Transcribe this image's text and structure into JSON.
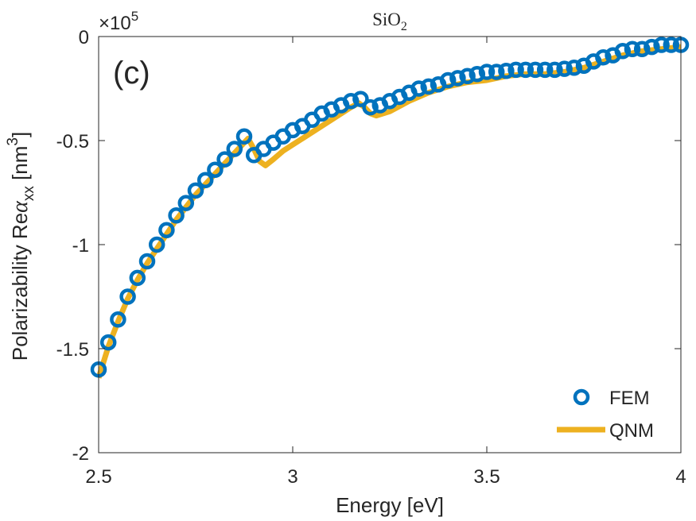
{
  "chart_data": {
    "type": "line",
    "title": "SiO",
    "title_subscript": "2",
    "panel_label": "(c)",
    "xlabel": "Energy [eV]",
    "ylabel_parts": [
      "Polarizability Re",
      "α",
      "xx",
      " [nm",
      "3",
      "]"
    ],
    "exponent_prefix": "×10",
    "exponent_power": "5",
    "xlim": [
      2.5,
      4.0
    ],
    "ylim": [
      -2.0,
      0.0
    ],
    "y_scale": 100000,
    "xticks": [
      2.5,
      3.0,
      3.5,
      4.0
    ],
    "xtick_labels": [
      "2.5",
      "3",
      "3.5",
      "4"
    ],
    "yticks": [
      0,
      -0.5,
      -1,
      -1.5,
      -2
    ],
    "ytick_labels": [
      "0",
      "-0.5",
      "-1",
      "-1.5",
      "-2"
    ],
    "grid": false,
    "legend_location": "bottom-right",
    "series": [
      {
        "name": "FEM",
        "style": "markers",
        "color": "#0072BD",
        "x": [
          2.5,
          2.525,
          2.55,
          2.575,
          2.6,
          2.625,
          2.65,
          2.675,
          2.7,
          2.725,
          2.75,
          2.775,
          2.8,
          2.825,
          2.85,
          2.875,
          2.9,
          2.925,
          2.95,
          2.975,
          3.0,
          3.025,
          3.05,
          3.075,
          3.1,
          3.125,
          3.15,
          3.175,
          3.2,
          3.225,
          3.25,
          3.275,
          3.3,
          3.325,
          3.35,
          3.375,
          3.4,
          3.425,
          3.45,
          3.475,
          3.5,
          3.525,
          3.55,
          3.575,
          3.6,
          3.625,
          3.65,
          3.675,
          3.7,
          3.725,
          3.75,
          3.775,
          3.8,
          3.825,
          3.85,
          3.875,
          3.9,
          3.925,
          3.95,
          3.975,
          4.0
        ],
        "y": [
          -1.6,
          -1.47,
          -1.36,
          -1.25,
          -1.16,
          -1.08,
          -1.0,
          -0.93,
          -0.86,
          -0.8,
          -0.74,
          -0.69,
          -0.64,
          -0.59,
          -0.54,
          -0.48,
          -0.57,
          -0.54,
          -0.51,
          -0.48,
          -0.45,
          -0.43,
          -0.4,
          -0.37,
          -0.35,
          -0.33,
          -0.31,
          -0.3,
          -0.34,
          -0.33,
          -0.31,
          -0.29,
          -0.27,
          -0.25,
          -0.24,
          -0.23,
          -0.21,
          -0.2,
          -0.19,
          -0.18,
          -0.17,
          -0.17,
          -0.165,
          -0.16,
          -0.16,
          -0.16,
          -0.16,
          -0.16,
          -0.155,
          -0.15,
          -0.14,
          -0.12,
          -0.1,
          -0.09,
          -0.07,
          -0.06,
          -0.06,
          -0.05,
          -0.04,
          -0.04,
          -0.04
        ]
      },
      {
        "name": "QNM",
        "style": "line",
        "color": "#EDB120",
        "x": [
          2.5,
          2.525,
          2.55,
          2.575,
          2.6,
          2.625,
          2.65,
          2.675,
          2.7,
          2.725,
          2.75,
          2.775,
          2.8,
          2.825,
          2.85,
          2.87,
          2.885,
          2.9,
          2.915,
          2.93,
          2.95,
          2.975,
          3.0,
          3.025,
          3.05,
          3.075,
          3.1,
          3.125,
          3.15,
          3.17,
          3.185,
          3.2,
          3.215,
          3.25,
          3.3,
          3.35,
          3.4,
          3.45,
          3.5,
          3.55,
          3.6,
          3.65,
          3.7,
          3.75,
          3.8,
          3.85,
          3.9,
          3.95,
          4.0
        ],
        "y": [
          -1.64,
          -1.49,
          -1.37,
          -1.26,
          -1.17,
          -1.09,
          -1.02,
          -0.95,
          -0.88,
          -0.82,
          -0.76,
          -0.71,
          -0.66,
          -0.61,
          -0.56,
          -0.52,
          -0.49,
          -0.54,
          -0.6,
          -0.62,
          -0.59,
          -0.55,
          -0.52,
          -0.49,
          -0.46,
          -0.43,
          -0.4,
          -0.37,
          -0.34,
          -0.32,
          -0.34,
          -0.37,
          -0.38,
          -0.36,
          -0.31,
          -0.27,
          -0.24,
          -0.22,
          -0.21,
          -0.19,
          -0.18,
          -0.18,
          -0.17,
          -0.15,
          -0.12,
          -0.09,
          -0.07,
          -0.06,
          -0.05
        ]
      }
    ]
  }
}
